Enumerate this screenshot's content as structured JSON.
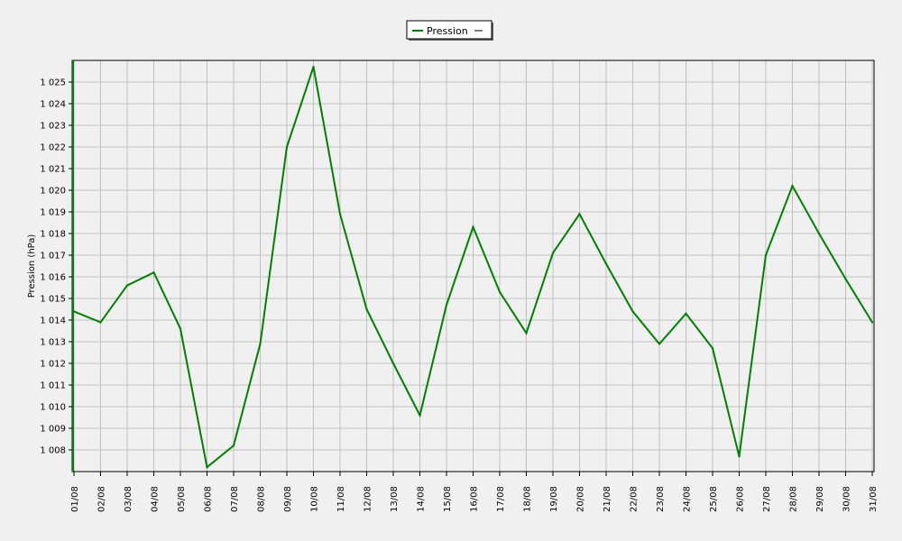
{
  "colors": {
    "background": "#f0f0f0",
    "plot_background": "#f0f0f0",
    "grid": "#c0c0c0",
    "series": "#008000",
    "axis": "#000000"
  },
  "legend": {
    "label": "Pression",
    "placement": "top-center"
  },
  "chart_data": {
    "type": "line",
    "title": "",
    "xlabel": "",
    "ylabel": "Pression (hPa)",
    "ylim": [
      1007,
      1026
    ],
    "y_ticks": [
      1008,
      1009,
      1010,
      1011,
      1012,
      1013,
      1014,
      1015,
      1016,
      1017,
      1018,
      1019,
      1020,
      1021,
      1022,
      1023,
      1024,
      1025
    ],
    "y_tick_labels": [
      "1 008",
      "1 009",
      "1 010",
      "1 011",
      "1 012",
      "1 013",
      "1 014",
      "1 015",
      "1 016",
      "1 017",
      "1 018",
      "1 019",
      "1 020",
      "1 021",
      "1 022",
      "1 023",
      "1 024",
      "1 025"
    ],
    "grid": true,
    "categories": [
      "01/08",
      "02/08",
      "03/08",
      "04/08",
      "05/08",
      "06/08",
      "07/08",
      "08/08",
      "09/08",
      "10/08",
      "11/08",
      "12/08",
      "13/08",
      "14/08",
      "15/08",
      "16/08",
      "17/08",
      "18/08",
      "19/08",
      "20/08",
      "21/08",
      "22/08",
      "23/08",
      "24/08",
      "25/08",
      "26/08",
      "27/08",
      "28/08",
      "29/08",
      "30/08",
      "31/08"
    ],
    "series": [
      {
        "name": "Pression",
        "color": "#008000",
        "values": [
          1014.4,
          1013.9,
          1015.6,
          1016.2,
          1013.6,
          1007.2,
          1008.2,
          1012.9,
          1022.0,
          1025.7,
          1018.9,
          1014.5,
          1012.0,
          1009.6,
          1014.7,
          1018.3,
          1015.3,
          1013.4,
          1017.1,
          1018.9,
          1016.6,
          1014.4,
          1012.9,
          1014.3,
          1012.7,
          1007.7,
          1017.0,
          1020.2,
          1018.0,
          1015.9,
          1013.9
        ]
      }
    ]
  }
}
